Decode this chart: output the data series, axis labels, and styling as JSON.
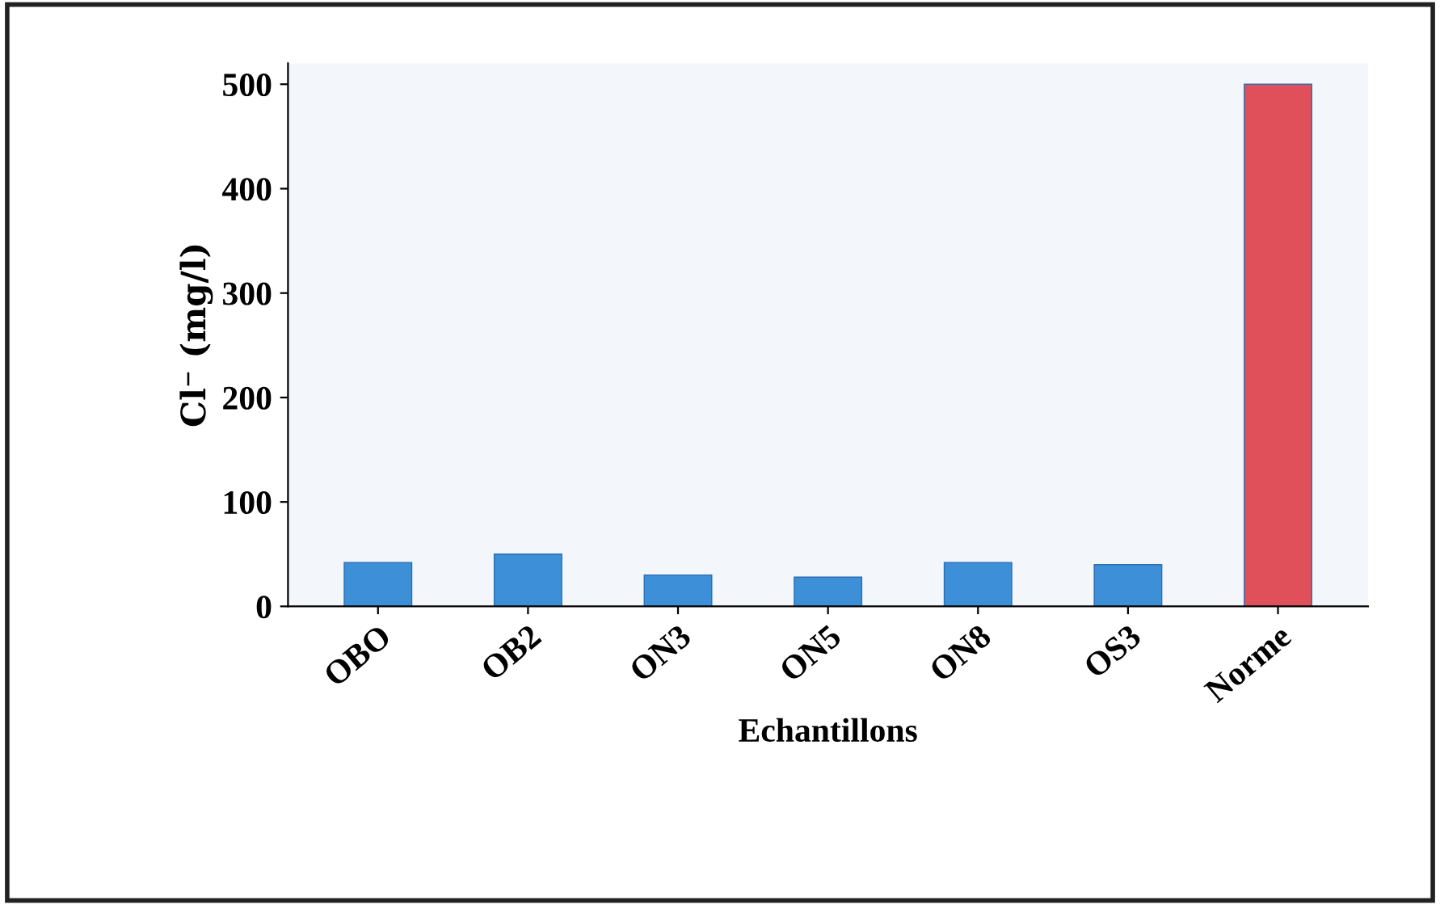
{
  "chart_data": {
    "type": "bar",
    "xlabel": "Echantillons",
    "ylabel": "Cl⁻ (mg/l)",
    "categories": [
      "OBO",
      "OB2",
      "ON3",
      "ON5",
      "ON8",
      "OS3",
      "Norme"
    ],
    "values": [
      42,
      50,
      30,
      28,
      42,
      40,
      500
    ],
    "colors": [
      "#3d8fd8",
      "#3d8fd8",
      "#3d8fd8",
      "#3d8fd8",
      "#3d8fd8",
      "#3d8fd8",
      "#e0505a"
    ],
    "ylim": [
      0,
      520
    ],
    "yticks": [
      0,
      100,
      200,
      300,
      400,
      500
    ],
    "grid": false
  }
}
